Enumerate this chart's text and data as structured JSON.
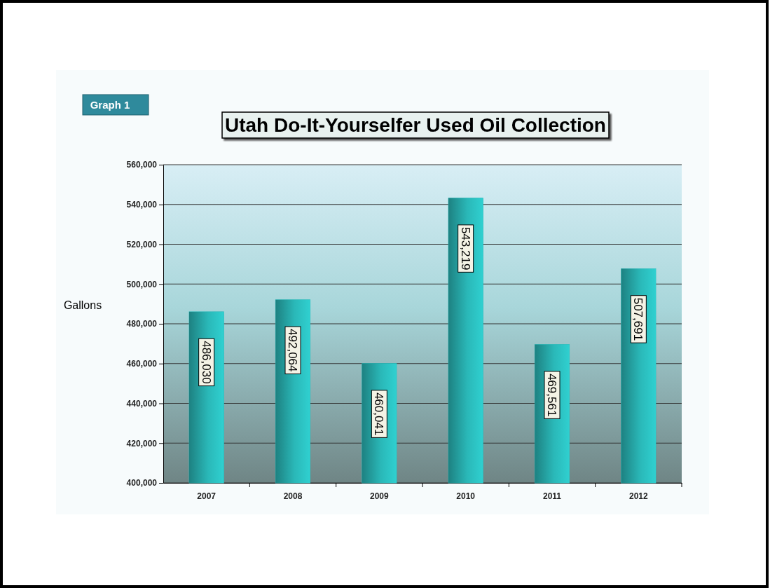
{
  "chart_data": {
    "type": "bar",
    "title": "Utah Do-It-Yourselfer Used Oil Collection",
    "ylabel": "Gallons",
    "annotations": [
      "Graph 1"
    ],
    "categories": [
      "2007",
      "2008",
      "2009",
      "2010",
      "2011",
      "2012"
    ],
    "values": [
      486030,
      492064,
      460041,
      543219,
      469561,
      507691
    ],
    "color": "#2ab8b8",
    "ylim": [
      400000,
      560000
    ],
    "yticks": [
      {
        "value": 400000,
        "label": "400,000"
      },
      {
        "value": 420000,
        "label": "420,000"
      },
      {
        "value": 440000,
        "label": "440,000"
      },
      {
        "value": 460000,
        "label": "460,000"
      },
      {
        "value": 480000,
        "label": "480,000"
      },
      {
        "value": 500000,
        "label": "500,000"
      },
      {
        "value": 520000,
        "label": "520,000"
      },
      {
        "value": 540000,
        "label": "540,000"
      },
      {
        "value": 560000,
        "label": "560,000"
      }
    ],
    "value_labels": [
      "486,030",
      "492,064",
      "460,041",
      "543,219",
      "469,561",
      "507,691"
    ],
    "grid": "y"
  }
}
